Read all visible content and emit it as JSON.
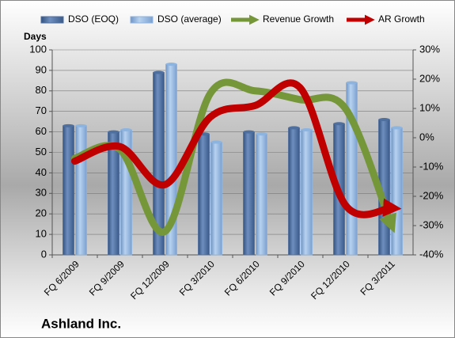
{
  "chart_data": {
    "type": "bar_line",
    "title": "Ashland Inc.",
    "ylabel": "Days",
    "categories": [
      "FQ 6/2009",
      "FQ 9/2009",
      "FQ 12/2009",
      "FQ 3/2010",
      "FQ 6/2010",
      "FQ 9/2010",
      "FQ 12/2010",
      "FQ 3/2011"
    ],
    "series": [
      {
        "name": "DSO (EOQ)",
        "type": "bar",
        "color": "#4f6f9f",
        "values": [
          63,
          60,
          89,
          59,
          60,
          62,
          64,
          66
        ]
      },
      {
        "name": "DSO (average)",
        "type": "bar",
        "color": "#8db3df",
        "values": [
          63,
          61,
          93,
          55,
          59,
          61,
          84,
          62
        ]
      },
      {
        "name": "Revenue Growth",
        "type": "line",
        "axis": "y2",
        "color": "#76963a",
        "values": [
          -7,
          -4,
          -32,
          15,
          16,
          13,
          10,
          -29
        ]
      },
      {
        "name": "AR Growth",
        "type": "line",
        "axis": "y2",
        "color": "#c00000",
        "values": [
          -8,
          -3,
          -16,
          7,
          11,
          17,
          -23,
          -24
        ]
      }
    ],
    "ylim": [
      0,
      100
    ],
    "yticks": [
      0,
      10,
      20,
      30,
      40,
      50,
      60,
      70,
      80,
      90,
      100
    ],
    "y2lim": [
      -40,
      30
    ],
    "y2ticks": [
      {
        "value": -40,
        "label": "-40%"
      },
      {
        "value": -30,
        "label": "-30%"
      },
      {
        "value": -20,
        "label": "-20%"
      },
      {
        "value": -10,
        "label": "-10%"
      },
      {
        "value": 0,
        "label": "0%"
      },
      {
        "value": 10,
        "label": "10%"
      },
      {
        "value": 20,
        "label": "20%"
      },
      {
        "value": 30,
        "label": "30%"
      }
    ],
    "grid": true
  }
}
